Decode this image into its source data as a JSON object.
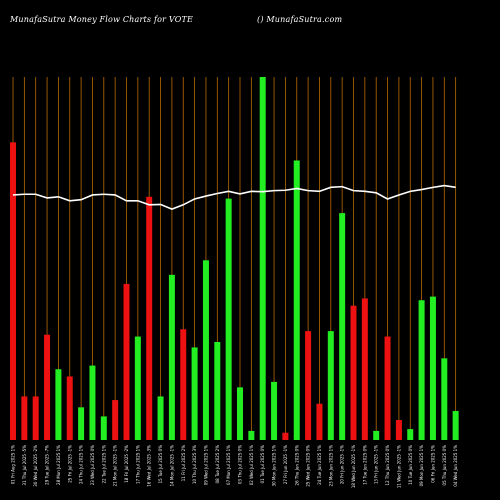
{
  "header": {
    "title": "MunafaSutra  Money Flow  Charts for VOTE",
    "site": "() MunafaSutra.com"
  },
  "colors": {
    "background": "#000000",
    "up": "#22ee22",
    "down": "#ee1111",
    "grid": "#b86a00",
    "line": "#ffffff",
    "text": "#ffffff"
  },
  "chart_data": {
    "type": "bar",
    "title": "MunafaSutra  Money Flow  Charts for VOTE",
    "ylim": [
      0,
      100
    ],
    "grid": true,
    "categories": [
      "01 Fri Aug 2025 1%",
      "31 Thu Jul 2025 -5%",
      "30 Wed Jul 2025 -2%",
      "29 Tue Jul 2025 -7%",
      "28 Mon Jul 2025 1%",
      "25 Fri Jul 2025 -1%",
      "24 Thu Jul 2025 1%",
      "23 Wed Jul 2025 0%",
      "22 Tue Jul 2025 1%",
      "21 Mon Jul 2025 -1%",
      "18 Fri Jul 2025 -2%",
      "17 Thu Jul 2025 1%",
      "16 Wed Jul 2025 -3%",
      "15 Tue Jul 2025 0%",
      "14 Mon Jul 2025 -1%",
      "11 Fri Jul 2025 2%",
      "10 Thu Jul 2025 3%",
      "09 Wed Jul 2025 1%",
      "08 Tue Jul 2025 2%",
      "07 Mon Jul 2025 1%",
      "03 Thu Jul 2025 0%",
      "02 Wed Jul 2025 1%",
      "01 Tue Jul 2025 0%",
      "30 Mon Jun 2025 1%",
      "27 Fri Jun 2025 -1%",
      "26 Thu Jun 2025 0%",
      "25 Wed Jun 2025 0%",
      "24 Tue Jun 2025 1%",
      "23 Mon Jun 2025 1%",
      "20 Fri Jun 2025 -1%",
      "18 Wed Jun 2025 -1%",
      "17 Tue Jun 2025 0%",
      "13 Fri Jun 2025 -1%",
      "12 Thu Jun 2025 0%",
      "11 Wed Jun 2025 -1%",
      "10 Tue Jun 2025 0%",
      "09 Mon Jun 2025 1%",
      "06 Fri Jun 2025 1%",
      "05 Thu Jun 2025 0%",
      "04 Wed Jun 2025 1%"
    ],
    "bars": [
      {
        "value": 82,
        "color": "red"
      },
      {
        "value": 12,
        "color": "red"
      },
      {
        "value": 12,
        "color": "red"
      },
      {
        "value": 29,
        "color": "red"
      },
      {
        "value": 19.5,
        "color": "green"
      },
      {
        "value": 17.5,
        "color": "red"
      },
      {
        "value": 9,
        "color": "green"
      },
      {
        "value": 20.5,
        "color": "green"
      },
      {
        "value": 6.5,
        "color": "green"
      },
      {
        "value": 11,
        "color": "red"
      },
      {
        "value": 43,
        "color": "red"
      },
      {
        "value": 28.5,
        "color": "green"
      },
      {
        "value": 67,
        "color": "red"
      },
      {
        "value": 12,
        "color": "green"
      },
      {
        "value": 45.5,
        "color": "green"
      },
      {
        "value": 30.5,
        "color": "red"
      },
      {
        "value": 25.5,
        "color": "green"
      },
      {
        "value": 49.5,
        "color": "green"
      },
      {
        "value": 27,
        "color": "green"
      },
      {
        "value": 66.5,
        "color": "green"
      },
      {
        "value": 14.5,
        "color": "green"
      },
      {
        "value": 2.5,
        "color": "green"
      },
      {
        "value": 100,
        "color": "green"
      },
      {
        "value": 16,
        "color": "green"
      },
      {
        "value": 2,
        "color": "red"
      },
      {
        "value": 77,
        "color": "green"
      },
      {
        "value": 30,
        "color": "red"
      },
      {
        "value": 10,
        "color": "red"
      },
      {
        "value": 30,
        "color": "green"
      },
      {
        "value": 62.5,
        "color": "green"
      },
      {
        "value": 37,
        "color": "red"
      },
      {
        "value": 39,
        "color": "red"
      },
      {
        "value": 2.5,
        "color": "green"
      },
      {
        "value": 28.5,
        "color": "red"
      },
      {
        "value": 5.5,
        "color": "red"
      },
      {
        "value": 3,
        "color": "green"
      },
      {
        "value": 38.5,
        "color": "green"
      },
      {
        "value": 39.5,
        "color": "green"
      },
      {
        "value": 22.5,
        "color": "green"
      },
      {
        "value": 8,
        "color": "green"
      }
    ],
    "line": [
      67.5,
      67.7,
      67.7,
      66.7,
      67.0,
      65.9,
      66.2,
      67.5,
      67.7,
      67.5,
      65.9,
      65.9,
      64.8,
      64.9,
      63.6,
      64.8,
      66.4,
      67.2,
      67.9,
      68.5,
      67.8,
      68.5,
      68.4,
      68.7,
      68.8,
      69.3,
      68.7,
      68.5,
      69.6,
      69.8,
      68.7,
      68.5,
      68.1,
      66.4,
      67.5,
      68.5,
      69.0,
      69.6,
      70.1,
      69.6
    ]
  }
}
